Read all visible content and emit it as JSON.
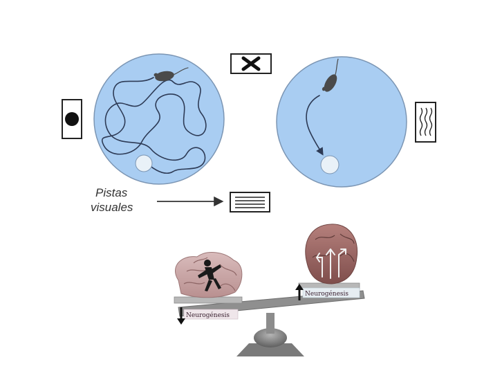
{
  "cues": {
    "label_line1": "Pistas",
    "label_line2": "visuales",
    "icons": [
      "filled-circle-cue",
      "x-mark-cue",
      "wavy-lines-cue",
      "horizontal-lines-cue"
    ]
  },
  "pools": [
    {
      "name": "search-path-pool",
      "description_icon": "long-tangled-path"
    },
    {
      "name": "direct-path-pool",
      "description_icon": "short-direct-path"
    }
  ],
  "balance": {
    "left_label": "Neurogénesis",
    "right_label": "Neurogénesis",
    "left_arrow": "down",
    "right_arrow": "up"
  },
  "colors": {
    "pool_fill": "#a9cdf2",
    "pool_stroke": "#7b95b3",
    "brain_left": "#c9a8a8",
    "brain_right": "#9c6a68",
    "base": "#8a8a8a"
  }
}
